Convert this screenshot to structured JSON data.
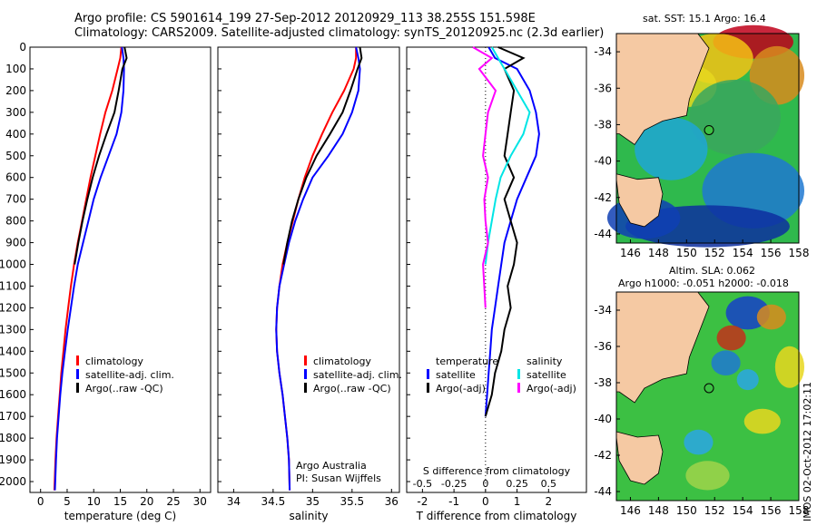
{
  "header": {
    "line1": "Argo profile: CS 5901614_199 27-Sep-2012 20120929_113 38.255S 151.598E",
    "line2": "Climatology: CARS2009. Satellite-adjusted climatology: synTS_20120925.nc (2.3d earlier)"
  },
  "colors": {
    "climatology": "#ff0000",
    "satellite": "#0000ff",
    "argo": "#000000",
    "salinity_satellite": "#00e5e5",
    "salinity_argo": "#ff00ff",
    "land": "#f5c9a3"
  },
  "chart_data": [
    {
      "type": "line",
      "ylim": [
        2050,
        0
      ],
      "yticks": [
        "0",
        "100",
        "200",
        "300",
        "400",
        "500",
        "600",
        "700",
        "800",
        "900",
        "1000",
        "1100",
        "1200",
        "1300",
        "1400",
        "1500",
        "1600",
        "1700",
        "1800",
        "1900",
        "2000"
      ],
      "xlabel": "temperature (deg C)",
      "xlim": [
        -2,
        32
      ],
      "xticks": [
        "0",
        "5",
        "10",
        "15",
        "20",
        "25",
        "30"
      ],
      "legend": [
        "climatology",
        "satellite-adj. clim.",
        "Argo(..raw -QC)"
      ],
      "series": [
        {
          "name": "climatology",
          "x": [
            15.2,
            15.0,
            14.5,
            13.5,
            12.2,
            11.2,
            10.3,
            9.4,
            8.6,
            7.8,
            7.0,
            6.3,
            5.7,
            5.2,
            4.7,
            4.3,
            3.9,
            3.6,
            3.3,
            3.0,
            2.8,
            2.6
          ],
          "y": [
            0,
            50,
            100,
            200,
            300,
            400,
            500,
            600,
            700,
            800,
            900,
            1000,
            1100,
            1200,
            1300,
            1400,
            1500,
            1600,
            1700,
            1800,
            1900,
            2040
          ]
        },
        {
          "name": "satellite-adj. clim.",
          "x": [
            15.3,
            15.6,
            15.7,
            15.6,
            15.2,
            14.3,
            12.8,
            11.3,
            10.0,
            9.0,
            8.0,
            7.0,
            6.3,
            5.7,
            5.1,
            4.6,
            4.1,
            3.7,
            3.4,
            3.1,
            2.9,
            2.7
          ],
          "y": [
            0,
            50,
            100,
            200,
            300,
            400,
            500,
            600,
            700,
            800,
            900,
            1000,
            1100,
            1200,
            1300,
            1400,
            1500,
            1600,
            1700,
            1800,
            1900,
            2040
          ]
        },
        {
          "name": "Argo(..raw -QC)",
          "x": [
            15.8,
            16.2,
            15.4,
            14.7,
            13.9,
            12.4,
            11.0,
            9.8,
            8.8,
            7.9,
            7.1,
            6.4
          ],
          "y": [
            0,
            50,
            100,
            200,
            300,
            400,
            500,
            600,
            700,
            800,
            900,
            1000
          ]
        }
      ]
    },
    {
      "type": "line",
      "ylim": [
        2050,
        0
      ],
      "xlabel": "salinity",
      "xlim": [
        33.8,
        36.1
      ],
      "xticks": [
        "34",
        "34.5",
        "35",
        "35.5",
        "36"
      ],
      "legend": [
        "climatology",
        "satellite-adj. clim.",
        "Argo(..raw -QC)"
      ],
      "annotations": [
        "Argo Australia",
        "PI: Susan Wijffels"
      ],
      "series": [
        {
          "name": "climatology",
          "x": [
            35.55,
            35.55,
            35.52,
            35.4,
            35.25,
            35.12,
            35.0,
            34.9,
            34.82,
            34.75,
            34.68,
            34.62,
            34.58,
            34.55,
            34.54,
            34.55,
            34.58,
            34.62,
            34.65,
            34.68,
            34.7,
            34.71
          ],
          "y": [
            0,
            50,
            100,
            200,
            300,
            400,
            500,
            600,
            700,
            800,
            900,
            1000,
            1100,
            1200,
            1300,
            1400,
            1500,
            1600,
            1700,
            1800,
            1900,
            2040
          ]
        },
        {
          "name": "satellite-adj. clim.",
          "x": [
            35.55,
            35.58,
            35.6,
            35.58,
            35.5,
            35.38,
            35.2,
            35.0,
            34.88,
            34.78,
            34.7,
            34.64,
            34.58,
            34.55,
            34.54,
            34.55,
            34.58,
            34.62,
            34.65,
            34.68,
            34.7,
            34.71
          ],
          "y": [
            0,
            50,
            100,
            200,
            300,
            400,
            500,
            600,
            700,
            800,
            900,
            1000,
            1100,
            1200,
            1300,
            1400,
            1500,
            1600,
            1700,
            1800,
            1900,
            2040
          ]
        },
        {
          "name": "Argo(..raw -QC)",
          "x": [
            35.6,
            35.62,
            35.57,
            35.48,
            35.38,
            35.22,
            35.05,
            34.92,
            34.82,
            34.74,
            34.68,
            34.63
          ],
          "y": [
            0,
            50,
            100,
            200,
            300,
            400,
            500,
            600,
            700,
            800,
            900,
            1000
          ]
        }
      ]
    },
    {
      "type": "line",
      "ylim": [
        2050,
        0
      ],
      "xlim": [
        -2.5,
        3.2
      ],
      "xticks_bottom": [
        "-2",
        "-1",
        "0",
        "1",
        "2"
      ],
      "xticks_top": [
        "-0.5",
        "-0.25",
        "0",
        "0.25",
        "0.5"
      ],
      "xlabel": "T difference from climatology",
      "xlabel_top": "S difference from climatology",
      "legend_temperature": [
        "temperature",
        "satellite",
        "Argo(-adj)"
      ],
      "legend_salinity": [
        "salinity",
        "satellite",
        "Argo(-adj)"
      ],
      "series": [
        {
          "name": "satellite",
          "x": [
            0.1,
            0.3,
            1.0,
            1.4,
            1.6,
            1.7,
            1.6,
            1.3,
            1.0,
            0.8,
            0.6,
            0.5,
            0.4,
            0.3,
            0.2,
            0.15,
            0.1,
            0.05,
            0.0
          ],
          "y": [
            0,
            50,
            100,
            200,
            300,
            400,
            500,
            600,
            700,
            800,
            900,
            1000,
            1100,
            1200,
            1300,
            1400,
            1500,
            1600,
            1700
          ]
        },
        {
          "name": "Argo(-adj)",
          "x": [
            0.4,
            1.2,
            0.6,
            0.9,
            0.8,
            0.7,
            0.6,
            0.9,
            0.6,
            0.8,
            1.0,
            0.9,
            0.7,
            0.8,
            0.6,
            0.5,
            0.3,
            0.2,
            0.0
          ],
          "y": [
            0,
            50,
            100,
            200,
            300,
            400,
            500,
            600,
            700,
            800,
            900,
            1000,
            1100,
            1200,
            1300,
            1400,
            1500,
            1600,
            1700
          ]
        },
        {
          "name": "satellite",
          "x": [
            0.05,
            0.1,
            0.15,
            0.25,
            0.35,
            0.3,
            0.2,
            0.12,
            0.08,
            0.05,
            0.02,
            0.0
          ],
          "y": [
            0,
            50,
            100,
            200,
            300,
            400,
            500,
            600,
            700,
            800,
            900,
            1000
          ]
        },
        {
          "name": "Argo(-adj)",
          "x": [
            -0.1,
            0.05,
            -0.05,
            0.08,
            0.02,
            0.0,
            -0.02,
            0.02,
            -0.01,
            0.0,
            0.02,
            -0.02,
            0.0
          ],
          "y": [
            0,
            50,
            100,
            200,
            300,
            400,
            500,
            600,
            700,
            800,
            900,
            1000,
            1200
          ]
        }
      ]
    },
    {
      "type": "heatmap",
      "title": "sat. SST: 15.1  Argo: 16.4",
      "xticks": [
        "146",
        "148",
        "150",
        "152",
        "154",
        "156",
        "158"
      ],
      "yticks": [
        "-34",
        "-36",
        "-38",
        "-40",
        "-42",
        "-44"
      ],
      "xlim": [
        145,
        158
      ],
      "ylim": [
        -44.5,
        -33
      ],
      "marker": {
        "lon": 151.6,
        "lat": -38.3
      }
    },
    {
      "type": "heatmap",
      "title": "Altim. SLA: 0.062",
      "subtitle": "Argo h1000: -0.051 h2000: -0.018",
      "xticks": [
        "146",
        "148",
        "150",
        "152",
        "154",
        "156",
        "158"
      ],
      "yticks": [
        "-34",
        "-36",
        "-38",
        "-40",
        "-42",
        "-44"
      ],
      "xlim": [
        145,
        158
      ],
      "ylim": [
        -44.5,
        -33
      ],
      "marker": {
        "lon": 151.6,
        "lat": -38.3
      }
    }
  ],
  "footer": {
    "stamp": "IMOS 02-Oct-2012 17:02:11"
  }
}
